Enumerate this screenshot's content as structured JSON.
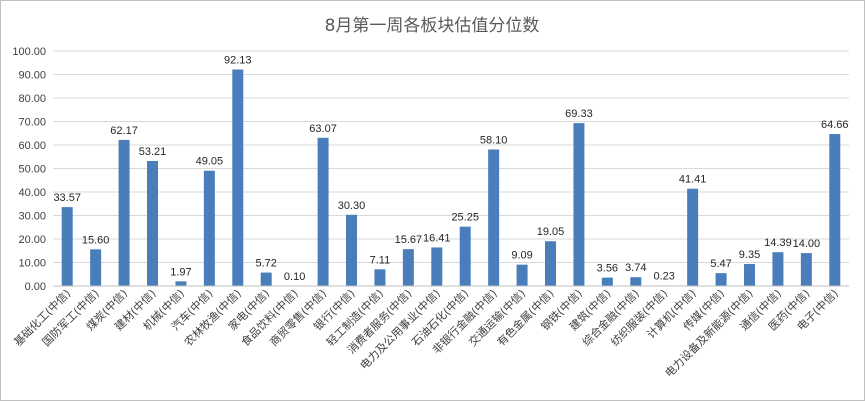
{
  "chart_data": {
    "type": "bar",
    "title": "8月第一周各板块估值分位数",
    "xlabel": "",
    "ylabel": "",
    "ylim": [
      0,
      100
    ],
    "yticks": [
      "0.00",
      "10.00",
      "20.00",
      "30.00",
      "40.00",
      "50.00",
      "60.00",
      "70.00",
      "80.00",
      "90.00",
      "100.00"
    ],
    "grid": true,
    "legend": "none",
    "bar_color": "#4a7ebb",
    "categories": [
      "基础化工(中信)",
      "国防军工(中信)",
      "煤炭(中信)",
      "建材(中信)",
      "机械(中信)",
      "汽车(中信)",
      "农林牧渔(中信)",
      "家电(中信)",
      "食品饮料(中信)",
      "商贸零售(中信)",
      "银行(中信)",
      "轻工制造(中信)",
      "消费者服务(中信)",
      "电力及公用事业(中信)",
      "石油石化(中信)",
      "非银行金融(中信)",
      "交通运输(中信)",
      "有色金属(中信)",
      "钢铁(中信)",
      "建筑(中信)",
      "综合金融(中信)",
      "纺织服装(中信)",
      "计算机(中信)",
      "传媒(中信)",
      "电力设备及新能源(中信)",
      "通信(中信)",
      "医药(中信)",
      "电子(中信)"
    ],
    "values": [
      33.57,
      15.6,
      62.17,
      53.21,
      1.97,
      49.05,
      92.13,
      5.72,
      0.1,
      63.07,
      30.3,
      7.11,
      15.67,
      16.41,
      25.25,
      58.1,
      9.09,
      19.05,
      69.33,
      3.56,
      3.74,
      0.23,
      41.41,
      5.47,
      9.35,
      14.39,
      14.0,
      64.66
    ],
    "data_labels": [
      "33.57",
      "15.60",
      "62.17",
      "53.21",
      "1.97",
      "49.05",
      "92.13",
      "5.72",
      "0.10",
      "63.07",
      "30.30",
      "7.11",
      "15.67",
      "16.41",
      "25.25",
      "58.10",
      "9.09",
      "19.05",
      "69.33",
      "3.56",
      "3.74",
      "0.23",
      "41.41",
      "5.47",
      "9.35",
      "14.39",
      "14.00",
      "64.66"
    ]
  }
}
